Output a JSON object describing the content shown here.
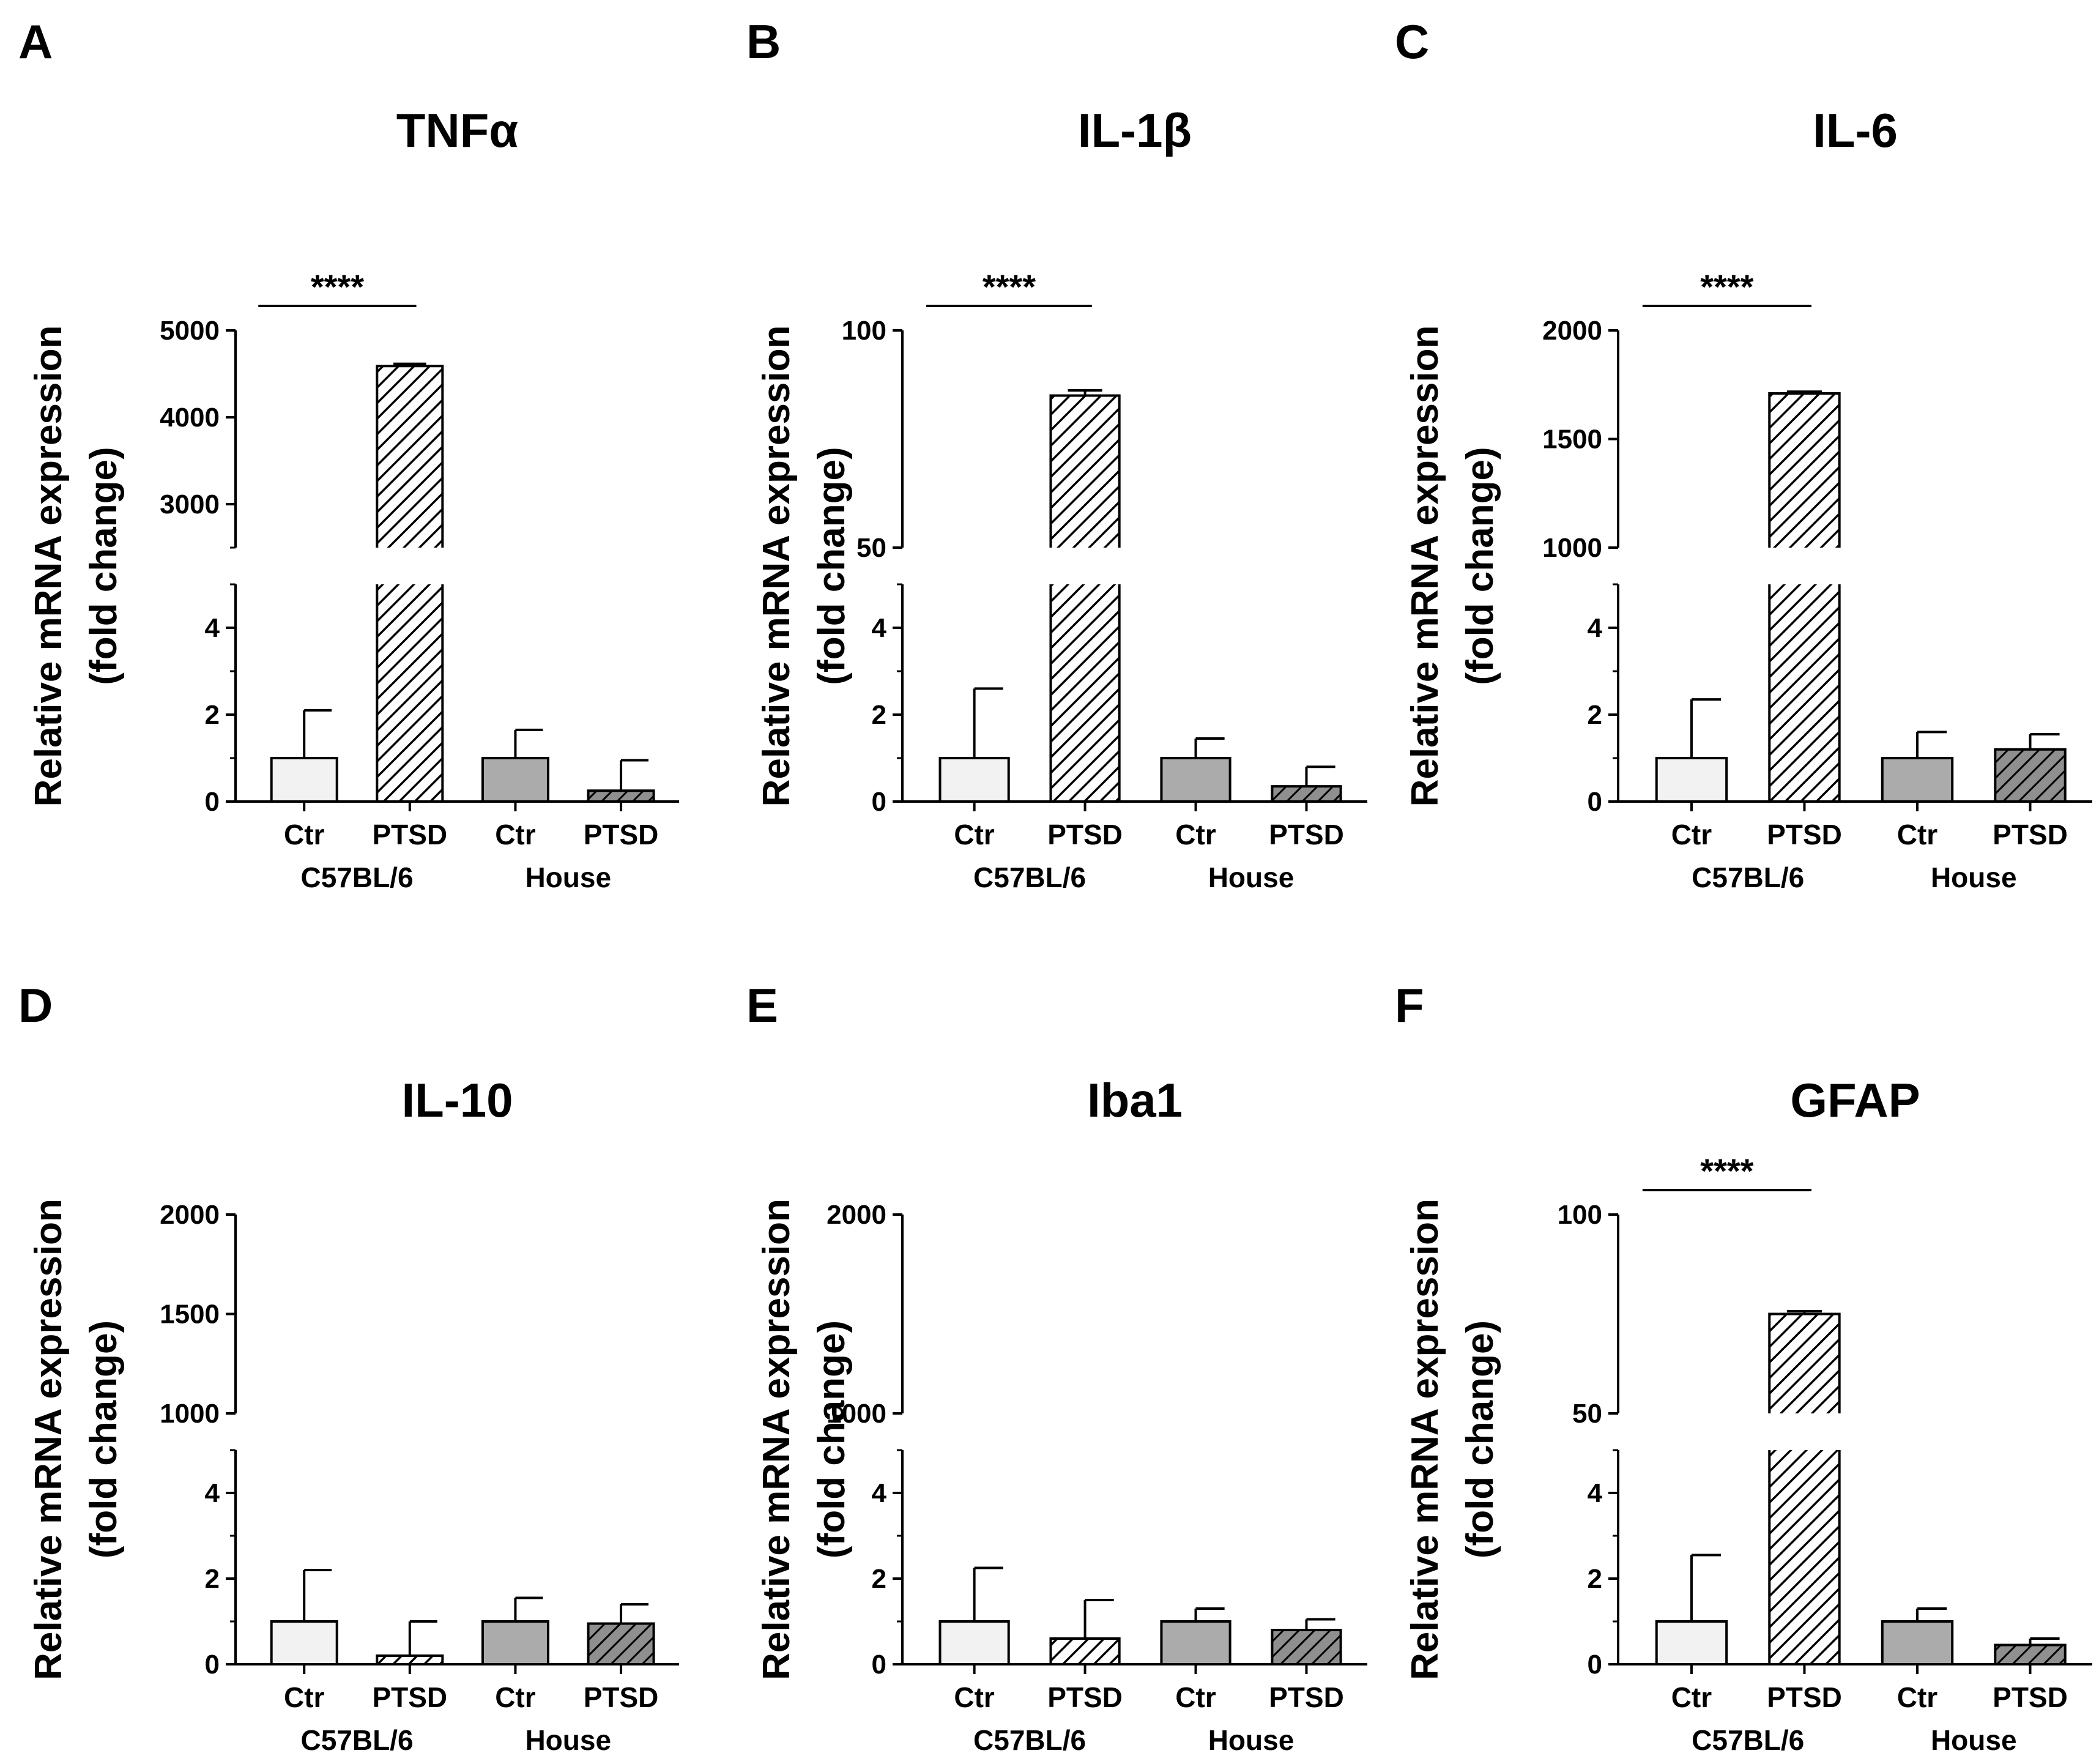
{
  "figure": {
    "ylabel_line1": "Relative mRNA expression",
    "ylabel_line2": "(fold change)",
    "colors": {
      "ctr_c57": "#f2f2f2",
      "ptsd_c57": "#ffffff",
      "ctr_house": "#ababab",
      "ptsd_house": "#8f8f8f",
      "axis": "#000000"
    }
  },
  "chart_data": [
    {
      "panel": "A",
      "type": "bar",
      "title": "TNFα",
      "categories": [
        "Ctr",
        "PTSD",
        "Ctr",
        "PTSD"
      ],
      "groups": [
        "C57BL/6",
        "House"
      ],
      "values": [
        1.0,
        4590,
        1.0,
        0.25
      ],
      "errors": [
        1.1,
        25,
        0.65,
        0.7
      ],
      "lower_ylim": [
        0,
        5
      ],
      "lower_ticks": [
        "0",
        "2",
        "4"
      ],
      "upper_ylim": [
        2500,
        5000
      ],
      "upper_ticks": [
        "3000",
        "4000",
        "5000"
      ],
      "dotted_zero": false,
      "significance": {
        "label": "****",
        "between": [
          0,
          1
        ]
      }
    },
    {
      "panel": "B",
      "type": "bar",
      "title": "IL-1β",
      "categories": [
        "Ctr",
        "PTSD",
        "Ctr",
        "PTSD"
      ],
      "groups": [
        "C57BL/6",
        "House"
      ],
      "values": [
        1.0,
        85,
        1.0,
        0.35
      ],
      "errors": [
        1.6,
        1.2,
        0.45,
        0.45
      ],
      "lower_ylim": [
        0,
        5
      ],
      "lower_ticks": [
        "0",
        "2",
        "4"
      ],
      "upper_ylim": [
        50,
        100
      ],
      "upper_ticks": [
        "50",
        "100"
      ],
      "dotted_zero": false,
      "significance": {
        "label": "****",
        "between": [
          0,
          1
        ]
      }
    },
    {
      "panel": "C",
      "type": "bar",
      "title": "IL-6",
      "categories": [
        "Ctr",
        "PTSD",
        "Ctr",
        "PTSD"
      ],
      "groups": [
        "C57BL/6",
        "House"
      ],
      "values": [
        1.0,
        1710,
        1.0,
        1.2
      ],
      "errors": [
        1.35,
        8,
        0.6,
        0.35
      ],
      "lower_ylim": [
        0,
        5
      ],
      "lower_ticks": [
        "0",
        "2",
        "4"
      ],
      "upper_ylim": [
        1000,
        2000
      ],
      "upper_ticks": [
        "1000",
        "1500",
        "2000"
      ],
      "dotted_zero": true,
      "significance": {
        "label": "****",
        "between": [
          0,
          1
        ]
      }
    },
    {
      "panel": "D",
      "type": "bar",
      "title": "IL-10",
      "categories": [
        "Ctr",
        "PTSD",
        "Ctr",
        "PTSD"
      ],
      "groups": [
        "C57BL/6",
        "House"
      ],
      "values": [
        1.0,
        0.2,
        1.0,
        0.95
      ],
      "errors": [
        1.2,
        0.8,
        0.55,
        0.45
      ],
      "lower_ylim": [
        0,
        5
      ],
      "lower_ticks": [
        "0",
        "2",
        "4"
      ],
      "upper_ylim": [
        1000,
        2000
      ],
      "upper_ticks": [
        "1000",
        "1500",
        "2000"
      ],
      "dotted_zero": true,
      "significance": null
    },
    {
      "panel": "E",
      "type": "bar",
      "title": "Iba1",
      "categories": [
        "Ctr",
        "PTSD",
        "Ctr",
        "PTSD"
      ],
      "groups": [
        "C57BL/6",
        "House"
      ],
      "values": [
        1.0,
        0.6,
        1.0,
        0.8
      ],
      "errors": [
        1.25,
        0.9,
        0.3,
        0.25
      ],
      "lower_ylim": [
        0,
        5
      ],
      "lower_ticks": [
        "0",
        "2",
        "4"
      ],
      "upper_ylim": [
        1000,
        2000
      ],
      "upper_ticks": [
        "1000",
        "2000"
      ],
      "dotted_zero": true,
      "significance": null
    },
    {
      "panel": "F",
      "type": "bar",
      "title": "GFAP",
      "categories": [
        "Ctr",
        "PTSD",
        "Ctr",
        "PTSD"
      ],
      "groups": [
        "C57BL/6",
        "House"
      ],
      "values": [
        1.0,
        75,
        1.0,
        0.45
      ],
      "errors": [
        1.55,
        0.7,
        0.3,
        0.15
      ],
      "lower_ylim": [
        0,
        5
      ],
      "lower_ticks": [
        "0",
        "2",
        "4"
      ],
      "upper_ylim": [
        50,
        100
      ],
      "upper_ticks": [
        "50",
        "100"
      ],
      "dotted_zero": false,
      "significance": {
        "label": "****",
        "between": [
          0,
          1
        ]
      }
    }
  ]
}
